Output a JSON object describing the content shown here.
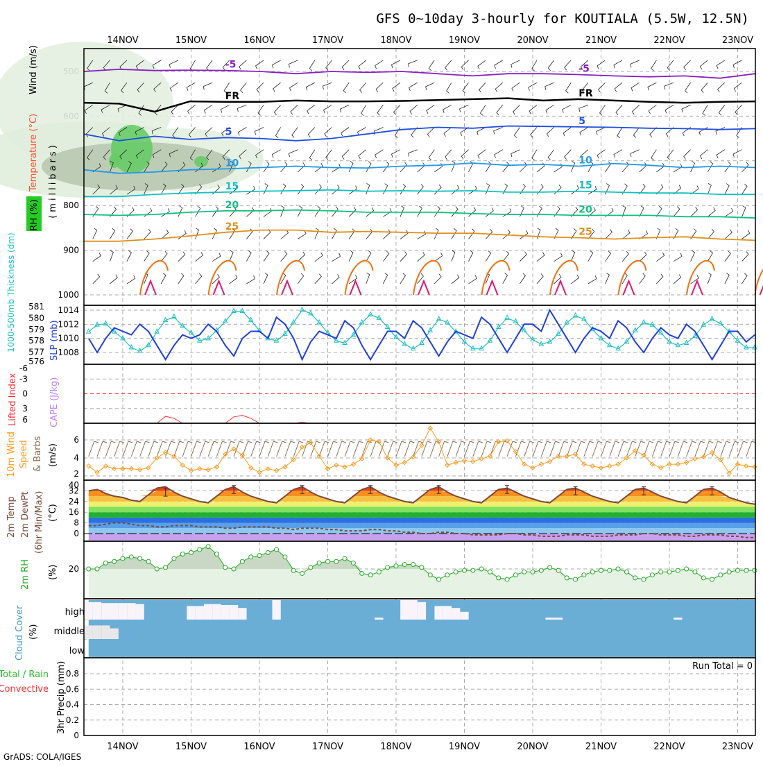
{
  "title": "GFS 0~10day 3-hourly for KOUTIALA (5.5W, 12.5N)",
  "credit": "GrADS: COLA/IGES",
  "dates": [
    "14NOV",
    "15NOV",
    "16NOV",
    "17NOV",
    "18NOV",
    "19NOV",
    "20NOV",
    "21NOV",
    "22NOV",
    "23NOV"
  ],
  "colors": {
    "slp": "#1f3fe0",
    "thickness": "#20c0c0",
    "wind": "#ff9a1a",
    "barbs": "#8a6a50",
    "temp": "#7a4a3a",
    "rh": "#22aa22",
    "cloud": "#6aaed6",
    "cloud_clear": "#f8f4fa",
    "li": "#ff3030",
    "cape": "#c080ff"
  },
  "panels": {
    "upper": {
      "ylabel_wind": "Wind (m/s)",
      "ylabel_temp": "Temperature (°C)",
      "ylabel_rh": "RH (%)",
      "ylabel_units": "(millibars)",
      "ticks": [
        "500",
        "600",
        "700",
        "800",
        "900",
        "1000"
      ]
    },
    "slp": {
      "ylabel_thick": "1000-500mb Thickness (dm)",
      "ylabel_slp": "SLP (mb)",
      "thick_ticks": [
        "581",
        "580",
        "579",
        "578",
        "577",
        "576"
      ],
      "slp_ticks": [
        "1014",
        "1012",
        "1010",
        "1008"
      ]
    },
    "li": {
      "ylabel_li": "Lifted Index",
      "ylabel_cape": "CAPE (J/kg)",
      "ticks": [
        "-6",
        "-3",
        "0",
        "3",
        "6"
      ]
    },
    "wind": {
      "ylabel_a": "10m Wind",
      "ylabel_b": "Speed",
      "ylabel_c": "& Barbs",
      "ylabel_units": "(m/s)",
      "ticks": [
        "6",
        "4",
        "2"
      ]
    },
    "temp": {
      "ylabel_a": "2m Temp",
      "ylabel_b": "2m DewPt",
      "ylabel_c": "(6hr Min/Max)",
      "ylabel_units": "(°C)",
      "ticks": [
        "40",
        "32",
        "24",
        "16",
        "8",
        "0"
      ]
    },
    "rh": {
      "ylabel": "2m RH",
      "ylabel_units": "(%)",
      "ticks": [
        "20"
      ]
    },
    "cloud": {
      "ylabel": "Cloud Cover",
      "ylabel_units": "(%)",
      "levels": [
        "high",
        "middle",
        "low"
      ]
    },
    "precip": {
      "ylabel_a": "Total / Rain",
      "ylabel_b": "Convective",
      "ylabel_c": "3hr Precip (mm)",
      "ticks": [
        "0.8",
        "0.6",
        "0.4",
        "0.2",
        "0"
      ],
      "run_total": "Run Total = 0"
    }
  },
  "chart_data": {
    "type": "meteogram",
    "time_start": "13NOV 12Z",
    "time_step_hours": 3,
    "isotherms": [
      {
        "label": "-5",
        "color": "#8a20c0",
        "pressure": [
          500,
          495,
          498,
          497,
          498,
          500,
          505,
          500,
          502,
          500,
          505,
          510,
          505,
          505,
          507,
          510,
          512,
          510,
          515,
          505
        ]
      },
      {
        "label": "FR",
        "color": "#000000",
        "pressure": [
          570,
          572,
          590,
          567,
          568,
          568,
          565,
          567,
          567,
          566,
          564,
          562,
          560,
          565,
          562,
          565,
          568,
          570,
          568,
          567
        ]
      },
      {
        "label": "5",
        "color": "#1f4fe0",
        "pressure": [
          640,
          655,
          645,
          652,
          648,
          650,
          655,
          650,
          640,
          630,
          625,
          627,
          622,
          623,
          624,
          625,
          627,
          628,
          630,
          628
        ]
      },
      {
        "label": "10",
        "color": "#1f9ae8",
        "pressure": [
          720,
          728,
          725,
          720,
          718,
          715,
          712,
          715,
          716,
          712,
          710,
          705,
          710,
          708,
          712,
          706,
          710,
          715,
          712,
          715
        ]
      },
      {
        "label": "15",
        "color": "#10c0c0",
        "pressure": [
          780,
          780,
          775,
          772,
          770,
          768,
          767,
          765,
          768,
          767,
          768,
          767,
          770,
          770,
          768,
          770,
          772,
          772,
          775,
          775
        ]
      },
      {
        "label": "20",
        "color": "#10c080",
        "pressure": [
          820,
          822,
          820,
          815,
          812,
          812,
          810,
          812,
          815,
          815,
          815,
          818,
          820,
          820,
          822,
          822,
          822,
          825,
          825,
          828
        ]
      },
      {
        "label": "25",
        "color": "#e0901a",
        "pressure": [
          880,
          880,
          875,
          868,
          860,
          855,
          855,
          860,
          858,
          860,
          862,
          862,
          866,
          870,
          872,
          875,
          872,
          870,
          875,
          878
        ]
      }
    ],
    "slp": [
      1010,
      1008,
      1010,
      1011.5,
      1011,
      1010.5,
      1012,
      1011,
      1009,
      1007,
      1009,
      1010.5,
      1010,
      1010.5,
      1012,
      1011,
      1009,
      1007.5,
      1010,
      1011,
      1011,
      1010,
      1013,
      1012,
      1010,
      1007,
      1009.5,
      1011,
      1010.5,
      1010,
      1012.5,
      1011.5,
      1009,
      1007,
      1009,
      1011,
      1011,
      1010,
      1012.5,
      1011.5,
      1009.5,
      1007.5,
      1009.5,
      1011,
      1010.5,
      1010,
      1013,
      1012,
      1010,
      1008,
      1010,
      1012,
      1012,
      1011,
      1014,
      1012,
      1010,
      1008,
      1010,
      1011.5,
      1011,
      1010,
      1012.5,
      1011.5,
      1009.5,
      1008,
      1010,
      1011.5,
      1010.5,
      1010,
      1012,
      1011,
      1009,
      1007,
      1009,
      1011,
      1011,
      1009.5,
      1010.5
    ],
    "thickness": [
      578.8,
      579.4,
      579.5,
      578.8,
      578.2,
      577.4,
      577.1,
      577.6,
      578.8,
      579.8,
      580.1,
      579.3,
      578.7,
      578.0,
      578.2,
      578.9,
      579.7,
      580.6,
      580.6,
      579.8,
      578.9,
      578.2,
      578.0,
      578.6,
      579.6,
      580.7,
      580.4,
      579.6,
      578.7,
      578.0,
      577.8,
      578.5,
      579.6,
      580.3,
      580.0,
      579.2,
      578.3,
      577.7,
      577.3,
      577.8,
      578.9,
      579.9,
      579.6,
      578.8,
      577.9,
      577.3,
      577.3,
      578.0,
      579.2,
      580.0,
      579.7,
      578.9,
      578.1,
      577.7,
      577.9,
      578.6,
      579.6,
      580.2,
      579.9,
      579.0,
      578.2,
      577.6,
      577.3,
      577.9,
      578.9,
      579.6,
      579.4,
      578.7,
      577.9,
      577.6,
      577.8,
      578.4,
      579.4,
      579.9,
      579.5,
      578.8,
      578.0,
      577.4,
      577.4
    ],
    "wind_speed": [
      3.1,
      2.4,
      3.1,
      2.8,
      2.8,
      2.8,
      2.7,
      2.9,
      4.0,
      4.6,
      4.2,
      3.2,
      2.6,
      2.8,
      2.7,
      3.0,
      4.4,
      5.0,
      4.3,
      2.9,
      2.4,
      2.8,
      2.6,
      3.0,
      3.8,
      5.2,
      5.7,
      4.2,
      2.8,
      3.2,
      3.0,
      3.3,
      3.9,
      6.0,
      5.8,
      4.0,
      3.2,
      3.5,
      4.1,
      5.4,
      7.3,
      5.8,
      3.2,
      3.5,
      3.7,
      3.6,
      3.9,
      4.2,
      5.8,
      5.9,
      4.7,
      3.3,
      2.9,
      3.3,
      3.6,
      4.2,
      4.2,
      4.4,
      3.3,
      3.1,
      2.9,
      3.1,
      3.3,
      4.0,
      4.8,
      4.3,
      3.3,
      2.9,
      3.3,
      3.3,
      3.5,
      3.9,
      4.1,
      4.6,
      3.8,
      2.3,
      3.3,
      3.1,
      3.0
    ],
    "temp_2m": [
      32,
      33,
      30,
      28,
      27,
      25,
      24,
      29,
      34,
      35,
      31,
      28,
      26,
      24,
      23,
      28,
      33,
      35,
      31,
      28,
      26,
      24,
      23,
      28,
      33,
      35,
      31,
      28,
      26,
      24,
      23,
      28,
      33,
      35,
      31,
      28,
      26,
      24,
      23,
      28,
      33,
      35,
      31,
      28,
      26,
      24,
      23,
      28,
      33,
      34,
      31,
      28,
      26,
      24,
      23,
      28,
      33,
      34,
      31,
      28,
      26,
      24,
      23,
      28,
      33,
      34,
      31,
      28,
      26,
      24,
      23,
      28,
      33,
      34,
      31,
      27,
      25,
      23,
      22
    ],
    "dewpt_2m": [
      6,
      6,
      7,
      8,
      8,
      7,
      6,
      6,
      5,
      5,
      6,
      6,
      6,
      5,
      5,
      5,
      4,
      4,
      5,
      5,
      5,
      5,
      4,
      4,
      3,
      4,
      4,
      4,
      3,
      3,
      2,
      2,
      2,
      3,
      3,
      2,
      2,
      1,
      1,
      0,
      0,
      1,
      1,
      0,
      0,
      -1,
      -1,
      -1,
      -1,
      0,
      0,
      -1,
      -1,
      -2,
      -2,
      -2,
      -1,
      -1,
      -1,
      -2,
      -2,
      -2,
      -1,
      -1,
      -1,
      0,
      0,
      -1,
      -1,
      -1,
      -2,
      -2,
      -1,
      -1,
      -1,
      -2,
      -2,
      -3,
      -3
    ],
    "rh_2m": [
      20,
      20,
      24,
      25,
      27,
      28,
      27,
      25,
      20,
      21,
      27,
      30,
      31,
      33,
      35,
      30,
      21,
      20,
      25,
      28,
      29,
      31,
      33,
      28,
      19,
      17,
      21,
      24,
      25,
      25,
      27,
      24,
      17,
      16,
      18,
      21,
      22,
      23,
      23,
      21,
      16,
      13,
      16,
      18,
      19,
      19,
      20,
      18,
      14,
      13,
      16,
      18,
      18,
      19,
      21,
      19,
      14,
      13,
      16,
      18,
      19,
      19,
      20,
      18,
      14,
      13,
      16,
      18,
      18,
      19,
      20,
      18,
      14,
      13,
      16,
      18,
      19,
      19,
      19
    ],
    "lifted_index_segments": [
      {
        "start": 8,
        "values": [
          6,
          4.6,
          5,
          6
        ]
      },
      {
        "start": 16,
        "values": [
          6,
          4.7,
          4.4,
          5,
          6
        ]
      },
      {
        "start": 24,
        "values": [
          6,
          5.8,
          6
        ]
      }
    ],
    "cloud_high": [
      90,
      90,
      85,
      85,
      85,
      85,
      80,
      0,
      0,
      0,
      0,
      0,
      70,
      70,
      80,
      80,
      75,
      75,
      60,
      0,
      0,
      0,
      100,
      0,
      0,
      0,
      0,
      0,
      0,
      0,
      0,
      0,
      0,
      0,
      10,
      0,
      0,
      100,
      100,
      90,
      0,
      70,
      70,
      60,
      40,
      0,
      0,
      0,
      0,
      0,
      0,
      0,
      0,
      0,
      10,
      10,
      0,
      0,
      0,
      0,
      0,
      0,
      0,
      0,
      0,
      0,
      0,
      0,
      0,
      10,
      0,
      0,
      0,
      0,
      0,
      0,
      0,
      0,
      0
    ],
    "cloud_mid": [
      70,
      70,
      70,
      55,
      0,
      0,
      0,
      0,
      0,
      0,
      0,
      0,
      0,
      0,
      0,
      0,
      0,
      0,
      0,
      0,
      0,
      0,
      0,
      0,
      0,
      0,
      0,
      0,
      0,
      0,
      0,
      0,
      0,
      0,
      0,
      0,
      0,
      0,
      0,
      0,
      0,
      0,
      0,
      0,
      0,
      0,
      0,
      0,
      0,
      0,
      0,
      0,
      0,
      0,
      0,
      0,
      0,
      0,
      0,
      0,
      0,
      0,
      0,
      0,
      0,
      0,
      0,
      0,
      0,
      0,
      0,
      0,
      0,
      0,
      0,
      0,
      0,
      0,
      0
    ],
    "precip": [],
    "upper_ylim": [
      450,
      1000
    ],
    "slp_ylim": [
      1006.5,
      1015
    ],
    "thickness_ylim": [
      576,
      581
    ],
    "li_ylim": [
      -6,
      6
    ],
    "wind_ylim": [
      1.8,
      7.8
    ],
    "temp_ylim": [
      -5,
      40
    ],
    "rh_ylim": [
      0,
      38.6
    ],
    "precip_ylim": [
      0,
      1
    ]
  }
}
